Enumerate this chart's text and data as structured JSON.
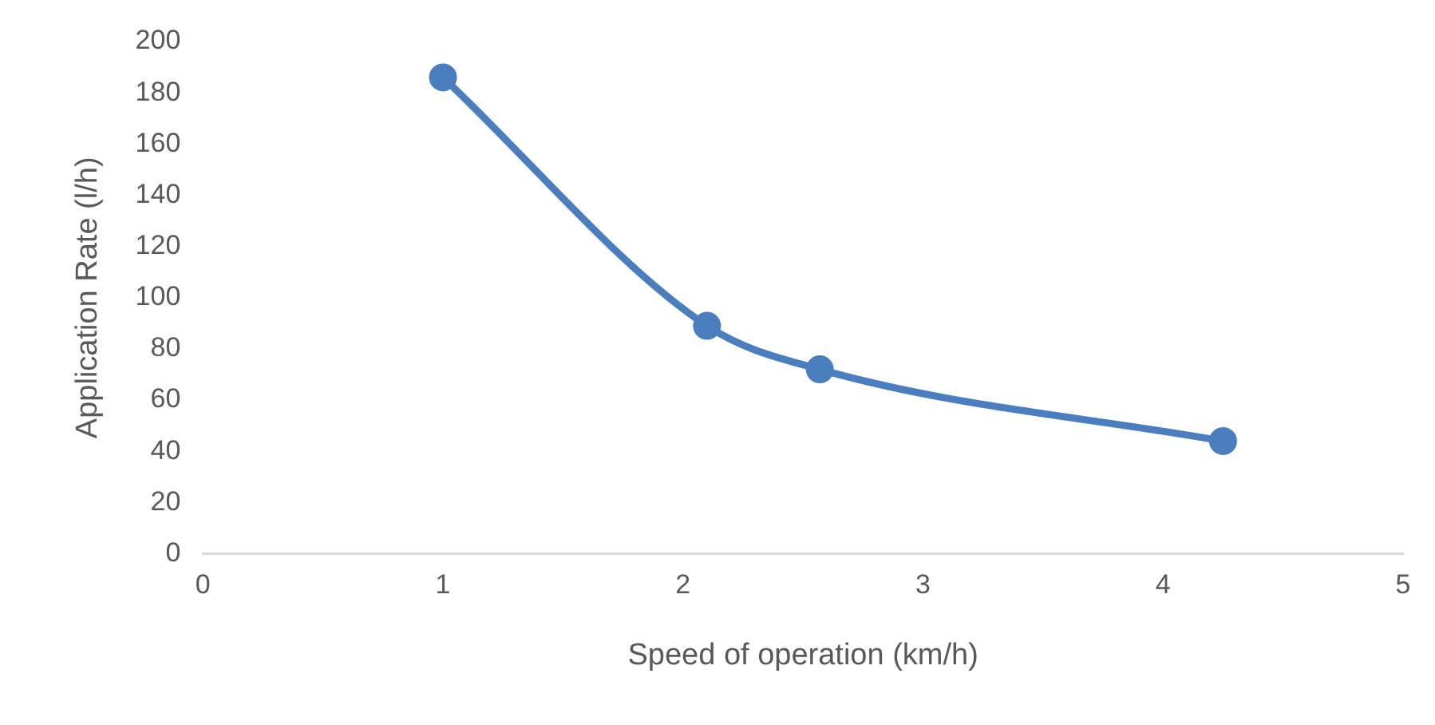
{
  "chart_data": {
    "type": "line",
    "xlabel": "Speed of operation (km/h)",
    "ylabel": "Application Rate (l/h)",
    "x": [
      1,
      2.1,
      2.57,
      4.25
    ],
    "series": [
      {
        "color": "#4a7ebf",
        "values": [
          186,
          89,
          72,
          44
        ]
      }
    ],
    "xlim": [
      0,
      5
    ],
    "xticks": [
      0,
      1,
      2,
      3,
      4,
      5
    ],
    "ylim": [
      0,
      200
    ],
    "yticks": [
      0,
      20,
      40,
      60,
      80,
      100,
      120,
      140,
      160,
      180,
      200
    ],
    "grid": false,
    "legend": false,
    "marker": "circle",
    "line_style": "solid"
  }
}
